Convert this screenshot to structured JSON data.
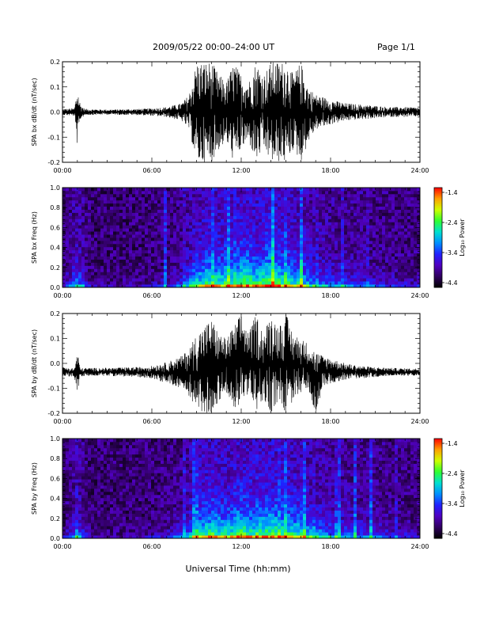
{
  "header": {
    "title": "2009/05/22  00:00–24:00 UT",
    "page": "Page 1/1"
  },
  "xaxis_label": "Universal Time (hh:mm)",
  "colorbar": {
    "label": "Log₁₀ Power",
    "ticks": [
      "-1.4",
      "-2.4",
      "-3.4",
      "-4.4"
    ],
    "colors": [
      "#ff0000",
      "#ffa000",
      "#d0ff00",
      "#30ff30",
      "#00e0d0",
      "#0090ff",
      "#2020ff",
      "#5000c0",
      "#300060",
      "#000000"
    ]
  },
  "chart_data": [
    {
      "type": "line",
      "ylabel": "SPA bx dB/dt (nT/sec)",
      "xlim": [
        0,
        24
      ],
      "ylim": [
        -0.2,
        0.2
      ],
      "xticks": [
        "00:00",
        "06:00",
        "12:00",
        "18:00",
        "24:00"
      ],
      "yticks": [
        "0.2",
        "0.1",
        "0.0",
        "-0.1",
        "-0.2"
      ],
      "envelope": {
        "x_hours": [
          0.0,
          0.8,
          1.0,
          1.2,
          1.5,
          3.0,
          5.0,
          6.0,
          7.0,
          8.0,
          8.5,
          9.0,
          9.5,
          10.0,
          10.5,
          11.0,
          11.5,
          12.0,
          12.5,
          13.0,
          13.5,
          14.0,
          14.5,
          15.0,
          15.5,
          16.0,
          16.5,
          17.0,
          17.5,
          18.0,
          19.0,
          20.0,
          21.0,
          22.0,
          23.0,
          24.0
        ],
        "upper": [
          0.012,
          0.015,
          0.1,
          0.03,
          0.012,
          0.01,
          0.012,
          0.015,
          0.02,
          0.035,
          0.07,
          0.2,
          0.2,
          0.2,
          0.15,
          0.12,
          0.2,
          0.15,
          0.12,
          0.2,
          0.15,
          0.2,
          0.2,
          0.2,
          0.15,
          0.2,
          0.1,
          0.07,
          0.06,
          0.05,
          0.035,
          0.03,
          0.025,
          0.02,
          0.02,
          0.018
        ],
        "lower": [
          -0.012,
          -0.015,
          -0.14,
          -0.03,
          -0.012,
          -0.01,
          -0.012,
          -0.015,
          -0.02,
          -0.035,
          -0.07,
          -0.2,
          -0.2,
          -0.2,
          -0.15,
          -0.12,
          -0.2,
          -0.15,
          -0.12,
          -0.2,
          -0.15,
          -0.2,
          -0.2,
          -0.2,
          -0.15,
          -0.2,
          -0.12,
          -0.07,
          -0.06,
          -0.05,
          -0.035,
          -0.03,
          -0.025,
          -0.02,
          -0.02,
          -0.018
        ]
      }
    },
    {
      "type": "heatmap",
      "ylabel": "SPA bx Freq (Hz)",
      "xlim": [
        0,
        24
      ],
      "ylim": [
        0.0,
        1.0
      ],
      "zlim": [
        -4.4,
        -1.4
      ],
      "xticks": [
        "00:00",
        "06:00",
        "12:00",
        "18:00",
        "24:00"
      ],
      "yticks": [
        "1.0",
        "0.8",
        "0.6",
        "0.4",
        "0.2",
        "0.0"
      ],
      "activity": {
        "x_hours": [
          0,
          1.0,
          2,
          4,
          6,
          7,
          8,
          9,
          10,
          11,
          12,
          13,
          14,
          15,
          16,
          17,
          18,
          19,
          20,
          22,
          24
        ],
        "level": [
          0.1,
          0.6,
          0.1,
          0.1,
          0.15,
          0.2,
          0.35,
          0.75,
          0.9,
          0.8,
          0.95,
          0.85,
          0.95,
          0.85,
          0.75,
          0.55,
          0.45,
          0.4,
          0.35,
          0.25,
          0.2
        ]
      }
    },
    {
      "type": "line",
      "ylabel": "SPA by dB/dt (nT/sec)",
      "xlim": [
        0,
        24
      ],
      "ylim": [
        -0.2,
        0.2
      ],
      "xticks": [
        "00:00",
        "06:00",
        "12:00",
        "18:00",
        "24:00"
      ],
      "yticks": [
        "0.2",
        "0.1",
        "0.0",
        "-0.1",
        "-0.2"
      ],
      "envelope": {
        "x_hours": [
          0.0,
          0.8,
          1.0,
          1.2,
          1.5,
          3.0,
          5.0,
          6.0,
          7.0,
          8.0,
          8.5,
          9.0,
          9.5,
          10.0,
          10.5,
          11.0,
          11.5,
          12.0,
          12.5,
          13.0,
          13.5,
          14.0,
          14.5,
          15.0,
          15.5,
          16.0,
          16.5,
          17.0,
          17.5,
          18.0,
          19.0,
          20.0,
          21.0,
          22.0,
          23.0,
          24.0
        ],
        "upper": [
          -0.015,
          -0.02,
          0.05,
          -0.02,
          -0.018,
          -0.018,
          -0.015,
          -0.01,
          0.005,
          0.03,
          0.06,
          0.12,
          0.15,
          0.18,
          0.12,
          0.1,
          0.15,
          0.2,
          0.12,
          0.2,
          0.12,
          0.2,
          0.15,
          0.2,
          0.12,
          0.1,
          0.08,
          0.05,
          0.03,
          0.02,
          0.0,
          -0.01,
          -0.015,
          -0.018,
          -0.02,
          -0.02
        ],
        "lower": [
          -0.05,
          -0.055,
          -0.12,
          -0.055,
          -0.05,
          -0.05,
          -0.055,
          -0.06,
          -0.08,
          -0.1,
          -0.13,
          -0.2,
          -0.2,
          -0.2,
          -0.15,
          -0.12,
          -0.2,
          -0.15,
          -0.12,
          -0.2,
          -0.15,
          -0.2,
          -0.15,
          -0.2,
          -0.15,
          -0.12,
          -0.1,
          -0.2,
          -0.09,
          -0.08,
          -0.065,
          -0.06,
          -0.055,
          -0.05,
          -0.05,
          -0.05
        ]
      }
    },
    {
      "type": "heatmap",
      "ylabel": "SPA by Freq (Hz)",
      "xlim": [
        0,
        24
      ],
      "ylim": [
        0.0,
        1.0
      ],
      "zlim": [
        -4.4,
        -1.4
      ],
      "xticks": [
        "00:00",
        "06:00",
        "12:00",
        "18:00",
        "24:00"
      ],
      "yticks": [
        "1.0",
        "0.8",
        "0.6",
        "0.4",
        "0.2",
        "0.0"
      ],
      "activity": {
        "x_hours": [
          0,
          1.0,
          2,
          4,
          6,
          7,
          8,
          9,
          10,
          11,
          12,
          13,
          14,
          15,
          16,
          17,
          18,
          19,
          20,
          22,
          24
        ],
        "level": [
          0.1,
          0.55,
          0.1,
          0.1,
          0.15,
          0.2,
          0.35,
          0.75,
          0.9,
          0.8,
          0.95,
          0.85,
          0.95,
          0.85,
          0.8,
          0.6,
          0.5,
          0.45,
          0.4,
          0.3,
          0.2
        ]
      }
    }
  ]
}
